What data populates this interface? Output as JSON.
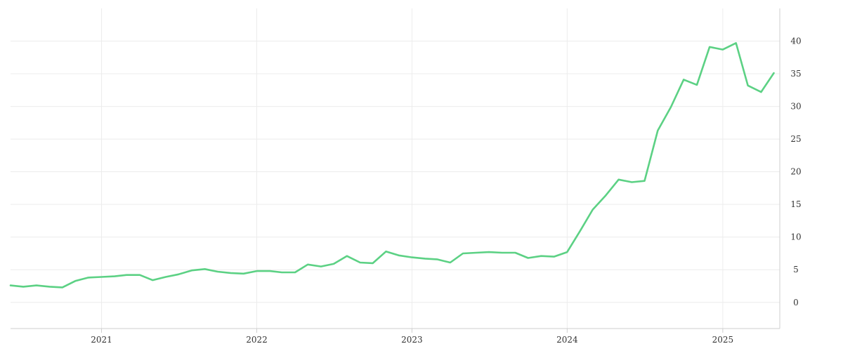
{
  "chart_data": {
    "type": "line",
    "title": "",
    "xlabel": "",
    "ylabel": "",
    "y_axis_side": "right",
    "grid": true,
    "xlim": [
      "2020-06-01",
      "2025-05-15"
    ],
    "ylim": [
      -4,
      45
    ],
    "x_ticks": [
      "2021",
      "2022",
      "2023",
      "2024",
      "2025"
    ],
    "y_ticks": [
      0,
      5,
      10,
      15,
      20,
      25,
      30,
      35,
      40
    ],
    "colors": {
      "series": "#5cd184",
      "grid": "#ececec",
      "axis": "#cfcfcf",
      "text": "#333333"
    },
    "series": [
      {
        "x": [
          "2020-06-01",
          "2020-07-01",
          "2020-08-01",
          "2020-09-01",
          "2020-10-01",
          "2020-11-01",
          "2020-12-01",
          "2021-01-01",
          "2021-02-01",
          "2021-03-01",
          "2021-04-01",
          "2021-05-01",
          "2021-06-01",
          "2021-07-01",
          "2021-08-01",
          "2021-09-01",
          "2021-10-01",
          "2021-11-01",
          "2021-12-01",
          "2022-01-01",
          "2022-02-01",
          "2022-03-01",
          "2022-04-01",
          "2022-05-01",
          "2022-06-01",
          "2022-07-01",
          "2022-08-01",
          "2022-09-01",
          "2022-10-01",
          "2022-11-01",
          "2022-12-01",
          "2023-01-01",
          "2023-02-01",
          "2023-03-01",
          "2023-04-01",
          "2023-05-01",
          "2023-06-01",
          "2023-07-01",
          "2023-08-01",
          "2023-09-01",
          "2023-10-01",
          "2023-11-01",
          "2023-12-01",
          "2024-01-01",
          "2024-02-01",
          "2024-03-01",
          "2024-04-01",
          "2024-05-01",
          "2024-06-01",
          "2024-07-01",
          "2024-08-01",
          "2024-09-01",
          "2024-10-01",
          "2024-11-01",
          "2024-12-01",
          "2025-01-01",
          "2025-02-01",
          "2025-03-01",
          "2025-04-01",
          "2025-05-01"
        ],
        "values": [
          2.6,
          2.4,
          2.6,
          2.4,
          2.3,
          3.3,
          3.8,
          3.9,
          4.0,
          4.2,
          4.2,
          3.4,
          3.9,
          4.3,
          4.9,
          5.1,
          4.7,
          4.5,
          4.4,
          4.8,
          4.8,
          4.6,
          4.6,
          5.8,
          5.5,
          5.9,
          7.1,
          6.1,
          6.0,
          7.8,
          7.2,
          6.9,
          6.7,
          6.6,
          6.1,
          7.5,
          7.6,
          7.7,
          7.6,
          7.6,
          6.8,
          7.1,
          7.0,
          7.7,
          11.0,
          14.2,
          16.4,
          18.8,
          18.4,
          18.6,
          26.3,
          29.9,
          34.1,
          33.3,
          39.1,
          38.7,
          39.7,
          33.2,
          32.2,
          35.1
        ]
      }
    ]
  }
}
